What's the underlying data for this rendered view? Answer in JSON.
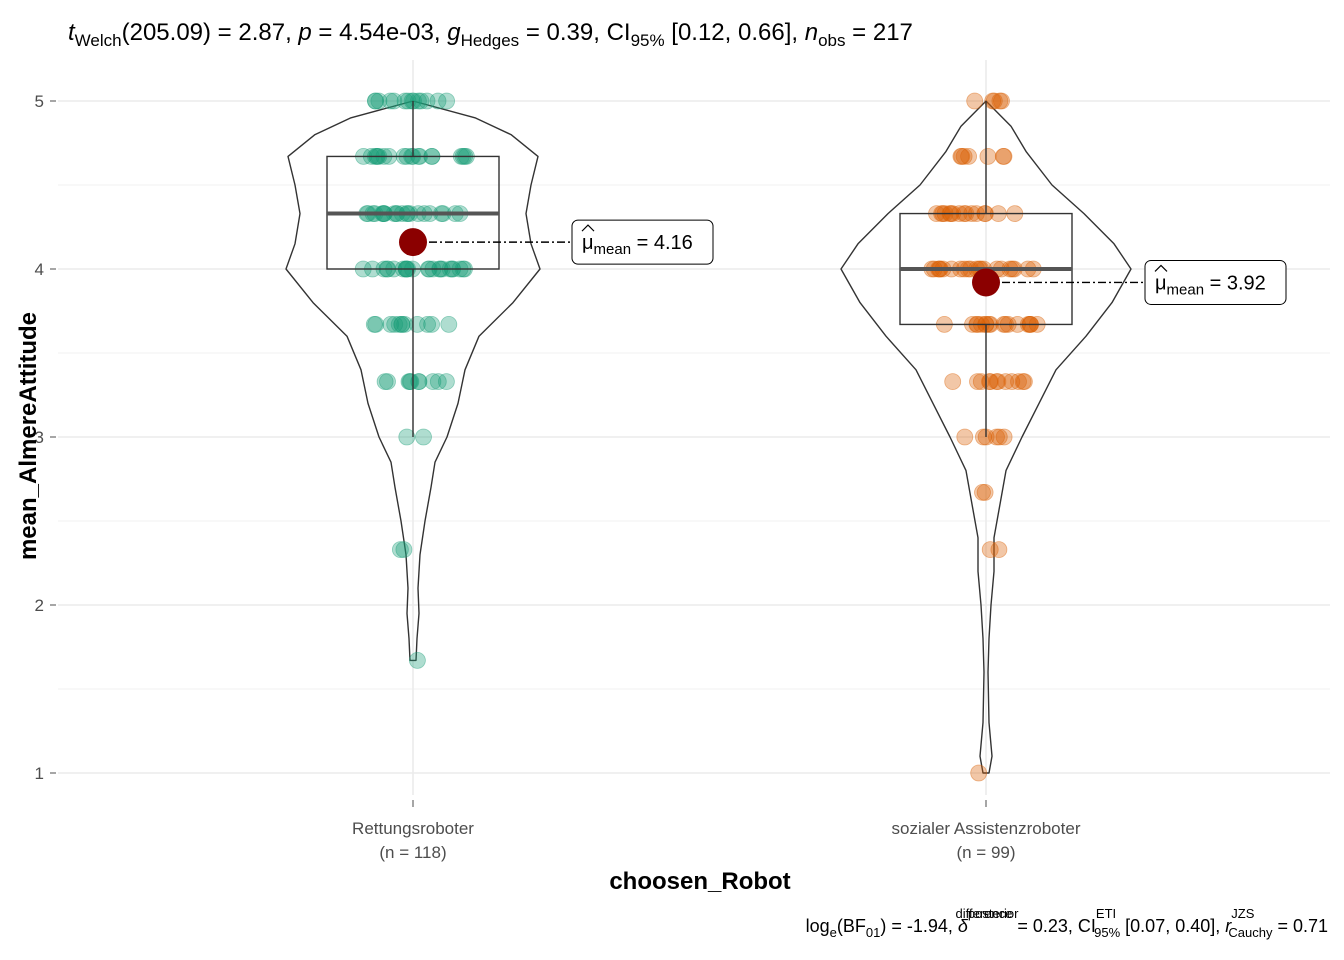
{
  "subtitle": "t_Welch(205.09) = 2.87, p = 4.54e-03, ĝ_Hedges = 0.39, CI95% [0.12, 0.66], n_obs = 217",
  "subtitle_parts": {
    "t": "t",
    "t_sub": "Welch",
    "t_val": "(205.09) = 2.87, ",
    "p": "p",
    "p_val": " = 4.54e-03, ",
    "g": "g",
    "g_sub": "Hedges",
    "g_val": " = 0.39, CI",
    "ci_sub": "95%",
    "ci_val": " [0.12, 0.66], ",
    "n": "n",
    "n_sub": "obs",
    "n_val": " = 217"
  },
  "caption": "log_e(BF01) = -1.94, δ̂ posterior difference = 0.23, CI ETI 95% [0.07, 0.40], r JZS Cauchy = 0.71",
  "caption_parts": {
    "log": "log",
    "log_sub": "e",
    "bf": "(BF",
    "bf_sub": "01",
    "bf_val": ") = -1.94, ",
    "delta": "δ",
    "delta_sup": "posterior",
    "delta_sub": "difference",
    "delta_val": " = 0.23, CI",
    "ci_sup": "ETI",
    "ci_sub": "95%",
    "ci_val": " [0.07, 0.40], ",
    "r": "r",
    "r_sup": "JZS",
    "r_sub": "Cauchy",
    "r_val": " = 0.71"
  },
  "colors": {
    "group1": "#1B9E77",
    "group2": "#D95F02",
    "mean_point": "#8B0000",
    "grid": "#ebebeb",
    "outline": "#333333"
  },
  "chart_data": {
    "type": "violin-box-scatter",
    "xlabel": "choosen_Robot",
    "ylabel": "mean_AlmereAttitude",
    "ylim": [
      0.85,
      5.1
    ],
    "yticks": [
      1,
      2,
      3,
      4,
      5
    ],
    "grid": true,
    "groups": [
      {
        "name": "Rettungsroboter",
        "n_label": "(n = 118)",
        "color": "#1B9E77",
        "mean": 4.16,
        "mean_label_mu": "μ",
        "mean_label_sub": "mean",
        "mean_label_val": " = 4.16",
        "box": {
          "q1": 4.0,
          "median": 4.33,
          "q3": 4.67,
          "whisker_low": 3.0,
          "whisker_high": 5.0
        },
        "violin_range": [
          1.67,
          5.0
        ],
        "points": [
          {
            "y": 5.0,
            "count": 14
          },
          {
            "y": 4.67,
            "count": 20
          },
          {
            "y": 4.33,
            "count": 22
          },
          {
            "y": 4.0,
            "count": 24
          },
          {
            "y": 3.67,
            "count": 12
          },
          {
            "y": 3.33,
            "count": 10
          },
          {
            "y": 3.0,
            "count": 2
          },
          {
            "y": 2.33,
            "count": 2
          },
          {
            "y": 1.67,
            "count": 1
          }
        ]
      },
      {
        "name": "sozialer Assistenzroboter",
        "n_label": "(n = 99)",
        "color": "#D95F02",
        "mean": 3.92,
        "mean_label_mu": "μ",
        "mean_label_sub": "mean",
        "mean_label_val": " = 3.92",
        "box": {
          "q1": 3.67,
          "median": 4.0,
          "q3": 4.33,
          "whisker_low": 3.0,
          "whisker_high": 5.0
        },
        "violin_range": [
          1.0,
          5.0
        ],
        "points": [
          {
            "y": 5.0,
            "count": 5
          },
          {
            "y": 4.67,
            "count": 7
          },
          {
            "y": 4.33,
            "count": 16
          },
          {
            "y": 4.0,
            "count": 22
          },
          {
            "y": 3.67,
            "count": 18
          },
          {
            "y": 3.33,
            "count": 12
          },
          {
            "y": 3.0,
            "count": 6
          },
          {
            "y": 2.67,
            "count": 2
          },
          {
            "y": 2.33,
            "count": 2
          },
          {
            "y": 1.0,
            "count": 1
          }
        ]
      }
    ]
  }
}
